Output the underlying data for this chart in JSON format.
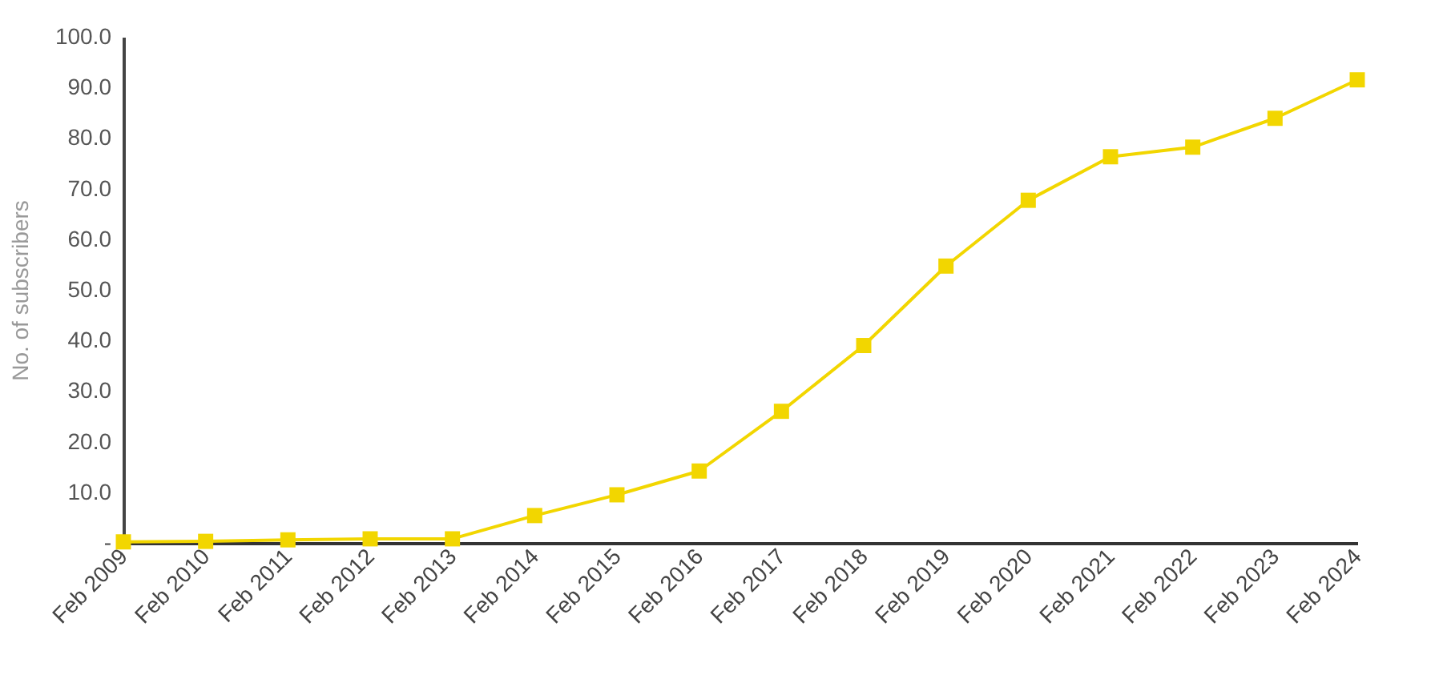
{
  "chart_data": {
    "type": "line",
    "ylabel": "No. of subscribers",
    "categories": [
      "Feb 2009",
      "Feb 2010",
      "Feb 2011",
      "Feb 2012",
      "Feb 2013",
      "Feb 2014",
      "Feb 2015",
      "Feb 2016",
      "Feb 2017",
      "Feb 2018",
      "Feb 2019",
      "Feb 2020",
      "Feb 2021",
      "Feb 2022",
      "Feb 2023",
      "Feb 2024"
    ],
    "series": [
      {
        "color": "#f2d600",
        "values": [
          0.2,
          0.3,
          0.6,
          0.8,
          0.8,
          5.4,
          9.5,
          14.2,
          26,
          39,
          54.7,
          67.7,
          76.3,
          78.2,
          83.9,
          91.5
        ]
      }
    ],
    "ylim": [
      0,
      100
    ],
    "yticks": [
      {
        "value": 0,
        "label": "-"
      },
      {
        "value": 10,
        "label": "10.0"
      },
      {
        "value": 20,
        "label": "20.0"
      },
      {
        "value": 30,
        "label": "30.0"
      },
      {
        "value": 40,
        "label": "40.0"
      },
      {
        "value": 50,
        "label": "50.0"
      },
      {
        "value": 60,
        "label": "60.0"
      },
      {
        "value": 70,
        "label": "70.0"
      },
      {
        "value": 80,
        "label": "80.0"
      },
      {
        "value": 90,
        "label": "90.0"
      },
      {
        "value": 100,
        "label": "100.0"
      }
    ],
    "grid": false,
    "legend": false,
    "marker": "square",
    "line_style": "solid"
  }
}
